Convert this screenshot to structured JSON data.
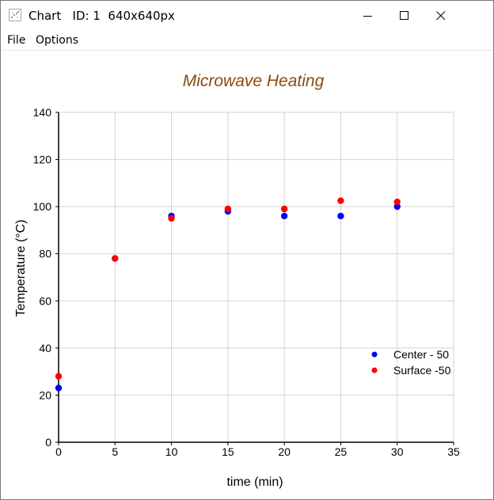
{
  "window": {
    "title": "Chart   ID: 1  640x640px",
    "icon": "chart-icon",
    "controls": [
      "minimize-icon",
      "maximize-icon",
      "close-icon"
    ]
  },
  "menu": {
    "items": [
      "File",
      "Options"
    ]
  },
  "chart_data": {
    "type": "scatter",
    "title": "Microwave Heating",
    "xlabel": "time (min)",
    "ylabel": "Temperature (°C)",
    "xlim": [
      0,
      35
    ],
    "ylim": [
      0,
      140
    ],
    "xticks": [
      "0",
      "5",
      "10",
      "15",
      "20",
      "25",
      "30",
      "35"
    ],
    "yticks": [
      "0",
      "20",
      "40",
      "60",
      "80",
      "100",
      "120",
      "140"
    ],
    "grid": true,
    "legend_position": "right",
    "title_color": "#8b4a10",
    "series": [
      {
        "name": "Center - 50",
        "color": "#0000ff",
        "x": [
          0,
          5,
          10,
          15,
          20,
          25,
          30
        ],
        "y": [
          23,
          78,
          96,
          98,
          96,
          96,
          100
        ]
      },
      {
        "name": "Surface -50",
        "color": "#ff0000",
        "x": [
          0,
          5,
          10,
          15,
          20,
          25,
          30
        ],
        "y": [
          28,
          78,
          95,
          99,
          99,
          102.5,
          102
        ]
      }
    ]
  }
}
